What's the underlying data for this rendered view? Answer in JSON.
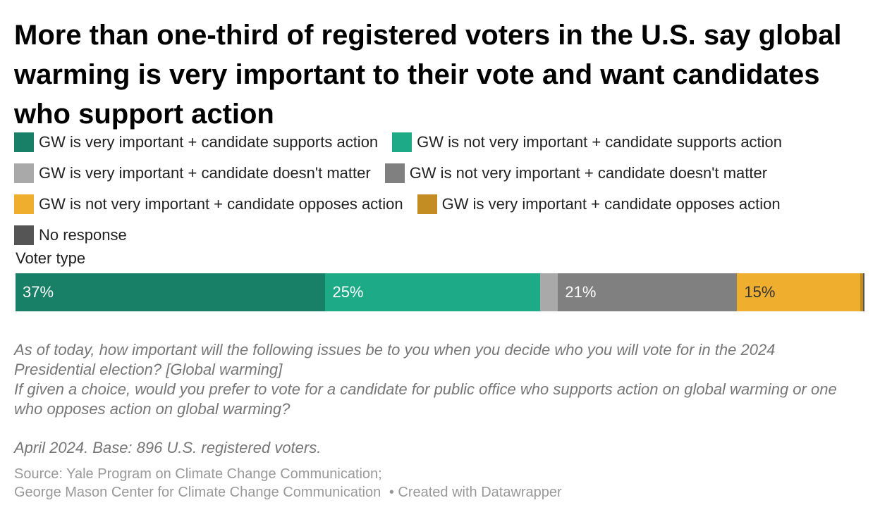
{
  "title": "More than one-third of registered voters in the U.S. say global warming is very important to their vote and want candidates who support action",
  "legend": [
    {
      "label": "GW is very important + candidate supports action",
      "color": "#178066"
    },
    {
      "label": "GW is not very important + candidate supports action",
      "color": "#1caa87"
    },
    {
      "label": "GW is very important + candidate doesn't matter",
      "color": "#a9a9a9"
    },
    {
      "label": "GW is not very important + candidate doesn't matter",
      "color": "#808080"
    },
    {
      "label": "GW is not very important + candidate opposes action",
      "color": "#f0ae2e"
    },
    {
      "label": "GW is very important + candidate opposes action",
      "color": "#c48d24"
    },
    {
      "label": "No response",
      "color": "#555555"
    }
  ],
  "chart_data": {
    "type": "bar",
    "orientation": "horizontal",
    "stacked": true,
    "row_header": "Voter type",
    "categories": [
      ""
    ],
    "series": [
      {
        "name": "GW is very important + candidate supports action",
        "values": [
          36.5
        ],
        "label": "37%",
        "color": "#178066",
        "text_color": "#ffffff"
      },
      {
        "name": "GW is not very important + candidate supports action",
        "values": [
          25.3
        ],
        "label": "25%",
        "color": "#1caa87",
        "text_color": "#ffffff"
      },
      {
        "name": "GW is very important + candidate doesn't matter",
        "values": [
          2.1
        ],
        "label": "",
        "color": "#a9a9a9",
        "text_color": "#ffffff"
      },
      {
        "name": "GW is not very important + candidate doesn't matter",
        "values": [
          21.1
        ],
        "label": "21%",
        "color": "#808080",
        "text_color": "#ffffff"
      },
      {
        "name": "GW is not very important + candidate opposes action",
        "values": [
          14.5
        ],
        "label": "15%",
        "color": "#f0ae2e",
        "text_color": "#333333"
      },
      {
        "name": "GW is very important + candidate opposes action",
        "values": [
          0.3
        ],
        "label": "",
        "color": "#c48d24",
        "text_color": "#333333"
      },
      {
        "name": "No response",
        "values": [
          0.2
        ],
        "label": "",
        "color": "#555555",
        "text_color": "#ffffff"
      }
    ]
  },
  "question": {
    "line1": "As of today, how important will the following issues be to you when you decide who you will vote for in the 2024 Presidential election? [Global warming]",
    "line2": "If given a choice, would you prefer to vote for a candidate for public office who supports action on global warming or one who opposes action on global warming?"
  },
  "note": "April 2024. Base: 896 U.S. registered voters.",
  "source": {
    "line1": "Source: Yale Program on Climate Change Communication;",
    "line2": "George Mason Center for Climate Change Communication",
    "credit": "• Created with Datawrapper"
  }
}
